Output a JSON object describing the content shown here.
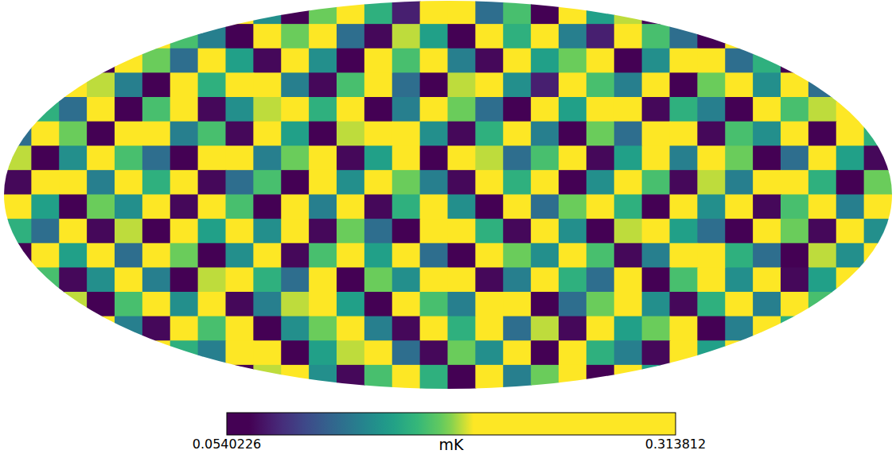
{
  "chart_data": {
    "type": "heatmap",
    "color": "viridis",
    "tick_labels": false,
    "colorbar": {
      "label": "mK",
      "range": [
        0.0540226,
        0.313812
      ],
      "ticks": [
        0.0540226,
        0.313812
      ]
    },
    "cells": [
      [
        0.17,
        0.24,
        0.06,
        0.15,
        0.21,
        0.13,
        0.07,
        0.19,
        0.26,
        0.14,
        0.05,
        0.18,
        0.23,
        0.16,
        0.08,
        0.2,
        0.27,
        0.12,
        0.17,
        0.06,
        0.22,
        0.15,
        0.19,
        0.07,
        0.25,
        0.14,
        0.18,
        0.06,
        0.21,
        0.16,
        0.24,
        0.13
      ],
      [
        0.06,
        0.19,
        0.22,
        0.14,
        0.07,
        0.25,
        0.17,
        0.13,
        0.06,
        0.21,
        0.18,
        0.28,
        0.12,
        0.07,
        0.19,
        0.15,
        0.06,
        0.23,
        0.16,
        0.2,
        0.13,
        0.08,
        0.26,
        0.17,
        0.12,
        0.06,
        0.22,
        0.19,
        0.14,
        0.07,
        0.18,
        0.25
      ],
      [
        0.21,
        0.13,
        0.16,
        0.06,
        0.27,
        0.18,
        0.12,
        0.22,
        0.15,
        0.07,
        0.24,
        0.14,
        0.06,
        0.2,
        0.17,
        0.29,
        0.13,
        0.07,
        0.21,
        0.15,
        0.18,
        0.26,
        0.06,
        0.14,
        0.2,
        0.23,
        0.12,
        0.16,
        0.06,
        0.25,
        0.13,
        0.19
      ],
      [
        0.14,
        0.07,
        0.25,
        0.19,
        0.13,
        0.06,
        0.22,
        0.16,
        0.2,
        0.28,
        0.13,
        0.07,
        0.17,
        0.24,
        0.12,
        0.06,
        0.19,
        0.26,
        0.14,
        0.08,
        0.23,
        0.17,
        0.13,
        0.21,
        0.06,
        0.18,
        0.27,
        0.14,
        0.2,
        0.12,
        0.07,
        0.22
      ],
      [
        0.26,
        0.16,
        0.12,
        0.21,
        0.06,
        0.17,
        0.29,
        0.07,
        0.14,
        0.19,
        0.22,
        0.16,
        0.25,
        0.06,
        0.13,
        0.21,
        0.18,
        0.12,
        0.06,
        0.24,
        0.15,
        0.2,
        0.28,
        0.07,
        0.16,
        0.13,
        0.06,
        0.22,
        0.17,
        0.19,
        0.26,
        0.14
      ],
      [
        0.12,
        0.22,
        0.18,
        0.06,
        0.2,
        0.24,
        0.13,
        0.17,
        0.07,
        0.26,
        0.15,
        0.06,
        0.19,
        0.21,
        0.27,
        0.14,
        0.07,
        0.16,
        0.23,
        0.13,
        0.06,
        0.18,
        0.12,
        0.25,
        0.21,
        0.07,
        0.17,
        0.14,
        0.24,
        0.06,
        0.2,
        0.16
      ],
      [
        0.19,
        0.06,
        0.14,
        0.25,
        0.17,
        0.12,
        0.06,
        0.23,
        0.2,
        0.13,
        0.18,
        0.27,
        0.07,
        0.15,
        0.22,
        0.06,
        0.24,
        0.19,
        0.12,
        0.17,
        0.26,
        0.07,
        0.15,
        0.2,
        0.13,
        0.24,
        0.18,
        0.06,
        0.12,
        0.22,
        0.15,
        0.07
      ],
      [
        0.07,
        0.24,
        0.2,
        0.13,
        0.28,
        0.16,
        0.21,
        0.07,
        0.12,
        0.17,
        0.06,
        0.22,
        0.14,
        0.26,
        0.18,
        0.13,
        0.07,
        0.21,
        0.16,
        0.25,
        0.06,
        0.14,
        0.23,
        0.17,
        0.07,
        0.19,
        0.13,
        0.26,
        0.21,
        0.16,
        0.06,
        0.18
      ],
      [
        0.23,
        0.15,
        0.06,
        0.18,
        0.14,
        0.21,
        0.07,
        0.26,
        0.17,
        0.06,
        0.2,
        0.13,
        0.24,
        0.07,
        0.16,
        0.28,
        0.14,
        0.06,
        0.2,
        0.12,
        0.18,
        0.23,
        0.16,
        0.06,
        0.27,
        0.14,
        0.21,
        0.07,
        0.17,
        0.25,
        0.13,
        0.2
      ],
      [
        0.16,
        0.12,
        0.27,
        0.07,
        0.19,
        0.06,
        0.24,
        0.15,
        0.22,
        0.14,
        0.25,
        0.07,
        0.18,
        0.12,
        0.06,
        0.2,
        0.23,
        0.16,
        0.07,
        0.21,
        0.14,
        0.06,
        0.19,
        0.26,
        0.15,
        0.12,
        0.06,
        0.23,
        0.18,
        0.07,
        0.27,
        0.14
      ],
      [
        0.06,
        0.2,
        0.15,
        0.22,
        0.12,
        0.26,
        0.18,
        0.06,
        0.14,
        0.23,
        0.07,
        0.17,
        0.2,
        0.15,
        0.25,
        0.12,
        0.06,
        0.27,
        0.18,
        0.14,
        0.22,
        0.17,
        0.07,
        0.13,
        0.2,
        0.24,
        0.16,
        0.12,
        0.06,
        0.19,
        0.14,
        0.23
      ],
      [
        0.25,
        0.17,
        0.07,
        0.14,
        0.21,
        0.13,
        0.06,
        0.19,
        0.27,
        0.16,
        0.12,
        0.22,
        0.06,
        0.18,
        0.14,
        0.24,
        0.21,
        0.07,
        0.13,
        0.26,
        0.16,
        0.12,
        0.2,
        0.06,
        0.17,
        0.22,
        0.14,
        0.28,
        0.07,
        0.15,
        0.2,
        0.12
      ],
      [
        0.13,
        0.22,
        0.19,
        0.06,
        0.17,
        0.24,
        0.14,
        0.21,
        0.07,
        0.13,
        0.19,
        0.26,
        0.15,
        0.06,
        0.22,
        0.17,
        0.13,
        0.2,
        0.25,
        0.06,
        0.12,
        0.18,
        0.27,
        0.14,
        0.07,
        0.16,
        0.2,
        0.13,
        0.23,
        0.17,
        0.06,
        0.21
      ],
      [
        0.2,
        0.06,
        0.16,
        0.23,
        0.13,
        0.07,
        0.2,
        0.17,
        0.25,
        0.06,
        0.14,
        0.18,
        0.22,
        0.13,
        0.07,
        0.21,
        0.16,
        0.24,
        0.12,
        0.19,
        0.07,
        0.23,
        0.15,
        0.18,
        0.26,
        0.06,
        0.13,
        0.2,
        0.16,
        0.24,
        0.12,
        0.17
      ],
      [
        0.15,
        0.26,
        0.12,
        0.18,
        0.07,
        0.22,
        0.16,
        0.13,
        0.2,
        0.24,
        0.06,
        0.15,
        0.19,
        0.27,
        0.12,
        0.07,
        0.18,
        0.14,
        0.21,
        0.06,
        0.25,
        0.16,
        0.13,
        0.07,
        0.2,
        0.15,
        0.23,
        0.06,
        0.19,
        0.13,
        0.22,
        0.26
      ],
      [
        0.18,
        0.13,
        0.24,
        0.06,
        0.2,
        0.15,
        0.27,
        0.12,
        0.06,
        0.19,
        0.21,
        0.14,
        0.07,
        0.17,
        0.23,
        0.16,
        0.06,
        0.22,
        0.13,
        0.18,
        0.2,
        0.06,
        0.24,
        0.15,
        0.12,
        0.21,
        0.07,
        0.17,
        0.25,
        0.14,
        0.18,
        0.06
      ]
    ]
  }
}
